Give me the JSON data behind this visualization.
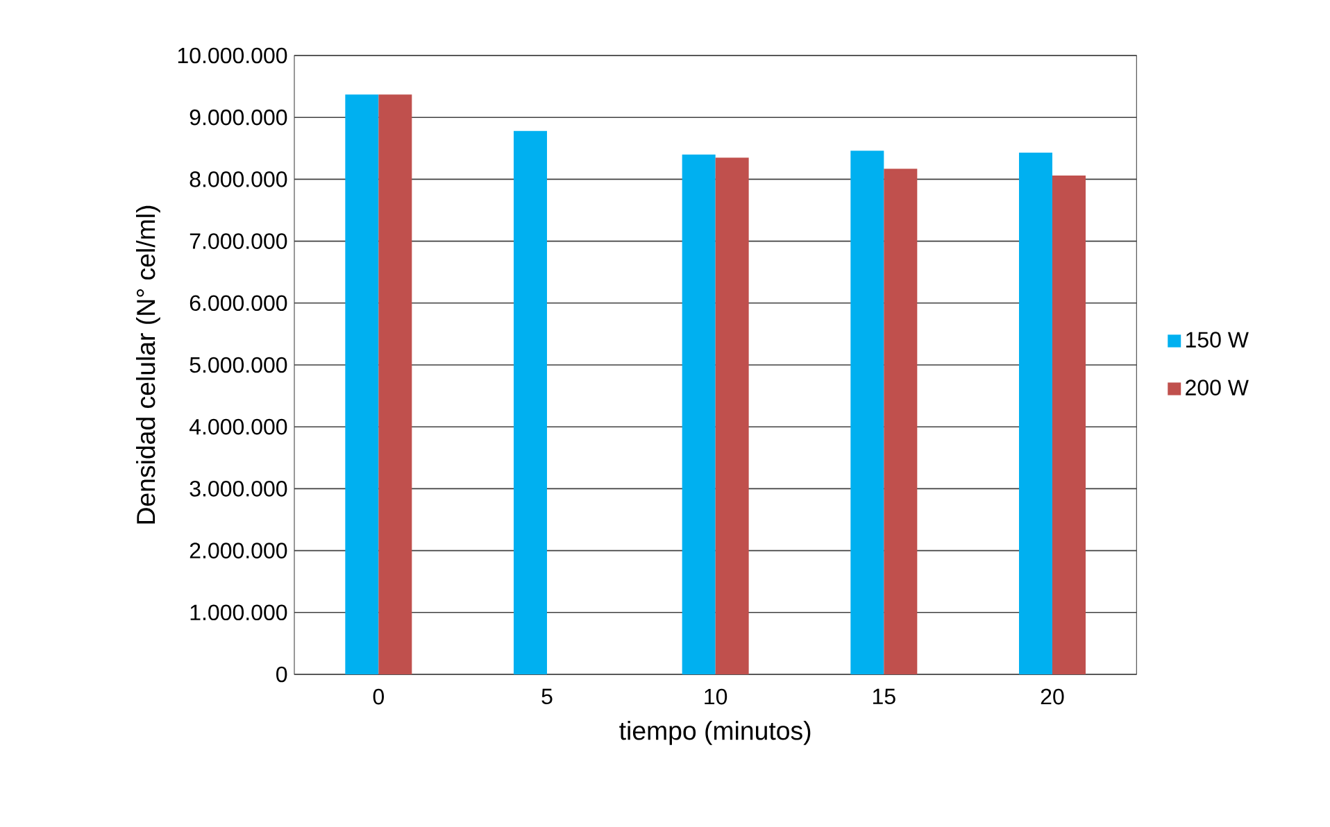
{
  "chart_data": {
    "type": "bar",
    "xlabel": "tiempo (minutos)",
    "ylabel": "Densidad celular (N° cel/ml)",
    "categories": [
      "0",
      "5",
      "10",
      "15",
      "20"
    ],
    "series": [
      {
        "name": "150 W",
        "color": "#00b0f0",
        "values": [
          9370000,
          8780000,
          8400000,
          8460000,
          8430000
        ]
      },
      {
        "name": "200 W",
        "color": "#c0504d",
        "values": [
          9370000,
          null,
          8350000,
          8170000,
          8060000
        ]
      }
    ],
    "ylim": [
      0,
      10000000
    ],
    "yticks": [
      0,
      {
        "value": 1000000,
        "label": "1.000.000"
      },
      {
        "value": 2000000,
        "label": "2.000.000"
      },
      {
        "value": 3000000,
        "label": "3.000.000"
      },
      {
        "value": 4000000,
        "label": "4.000.000"
      },
      {
        "value": 5000000,
        "label": "5.000.000"
      },
      {
        "value": 6000000,
        "label": "6.000.000"
      },
      {
        "value": 7000000,
        "label": "7.000.000"
      },
      {
        "value": 8000000,
        "label": "8.000.000"
      },
      {
        "value": 9000000,
        "label": "9.000.000"
      },
      {
        "value": 10000000,
        "label": "10.000.000"
      }
    ],
    "grid": "y",
    "legend": "right"
  }
}
